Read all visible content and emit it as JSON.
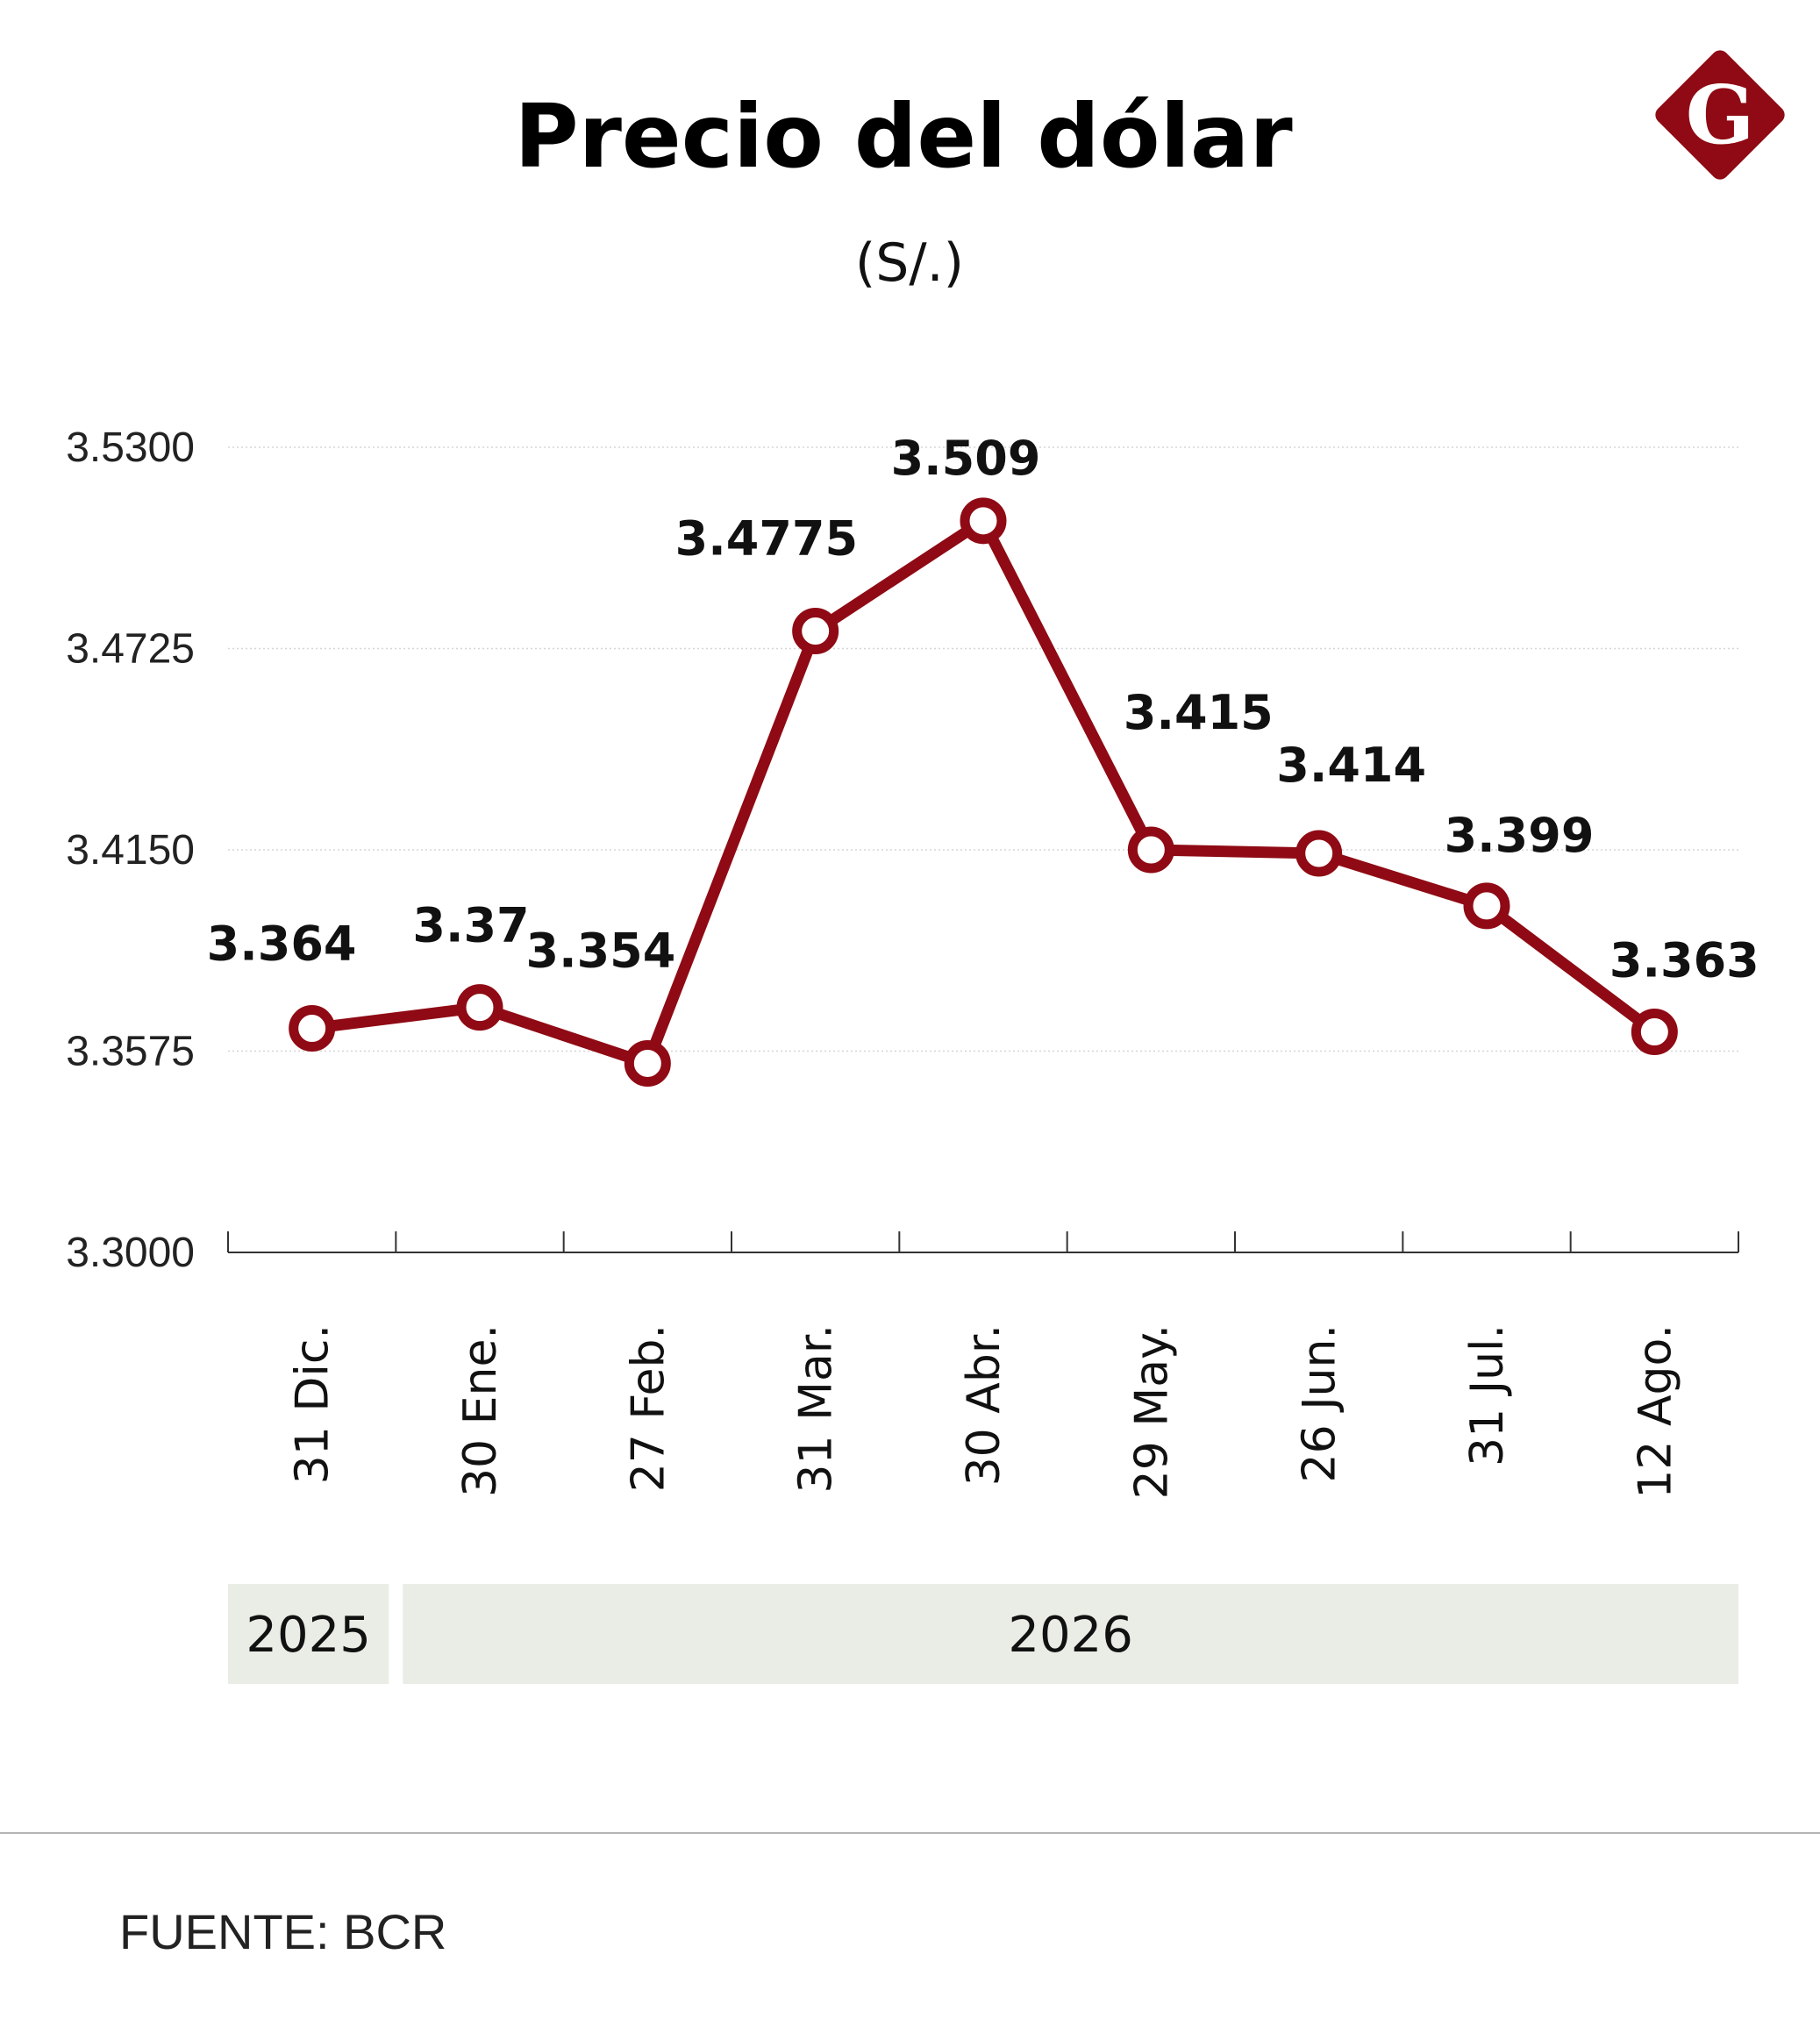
{
  "logo": {
    "letter": "G",
    "color": "#8f0a14"
  },
  "chart_data": {
    "type": "line",
    "title": "Precio del dólar",
    "subtitle": "(S/.)",
    "categories": [
      "31 Dic.",
      "30 Ene.",
      "27 Feb.",
      "31 Mar.",
      "30 Abr.",
      "29 May.",
      "26 Jun.",
      "31 Jul.",
      "12 Ago."
    ],
    "values": [
      3.364,
      3.37,
      3.354,
      3.4775,
      3.509,
      3.415,
      3.414,
      3.399,
      3.363
    ],
    "data_labels": [
      "3.364",
      "3.37",
      "3.354",
      "3.4775",
      "3.509",
      "3.415",
      "3.414",
      "3.399",
      "3.363"
    ],
    "yticks": [
      3.3,
      3.3575,
      3.415,
      3.4725,
      3.53
    ],
    "ytick_labels": [
      "3.3000",
      "3.3575",
      "3.4150",
      "3.4725",
      "3.5300"
    ],
    "ylim": [
      3.3,
      3.53
    ],
    "grid": true,
    "line_color": "#8f0a14",
    "year_groups": [
      {
        "label": "2025",
        "start": 0,
        "end": 0
      },
      {
        "label": "2026",
        "start": 1,
        "end": 8
      }
    ],
    "year_band_color": "#e9ede6",
    "source": "FUENTE: BCR"
  }
}
